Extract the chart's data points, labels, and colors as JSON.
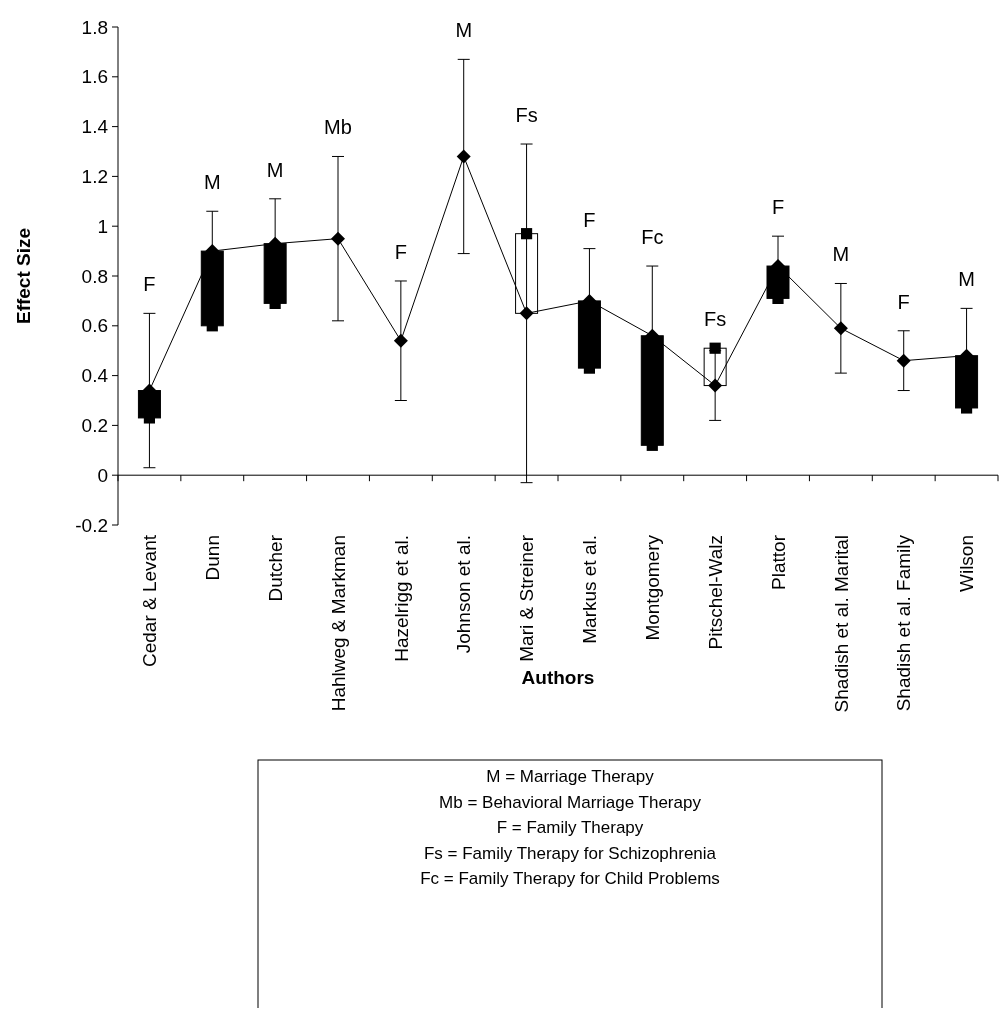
{
  "chart_data": {
    "type": "line",
    "xlabel": "Authors",
    "ylabel": "Effect Size",
    "categories": [
      "Cedar & Levant",
      "Dunn",
      "Dutcher",
      "Hahlweg & Markman",
      "Hazelrigg et al.",
      "Johnson et al.",
      "Mari & Streiner",
      "Markus et al.",
      "Montgomery",
      "Pitschel-Walz",
      "Plattor",
      "Shadish et al. Marital",
      "Shadish et al. Family",
      "Wilson"
    ],
    "ylim": [
      -0.2,
      1.8
    ],
    "yticks": [
      -0.2,
      0,
      0.2,
      0.4,
      0.6,
      0.8,
      1,
      1.2,
      1.4,
      1.6,
      1.8
    ],
    "series": [
      {
        "type": "bar",
        "colors": [
          "#000000",
          "#000000",
          "#000000",
          null,
          null,
          null,
          "#ffffff",
          "#000000",
          "#000000",
          "#ffffff",
          "#000000",
          null,
          null,
          "#000000"
        ],
        "base": [
          0.23,
          0.6,
          0.69,
          null,
          null,
          null,
          0.65,
          0.43,
          0.12,
          0.36,
          0.71,
          null,
          null,
          0.27
        ],
        "values": [
          0.11,
          0.3,
          0.24,
          null,
          null,
          null,
          0.32,
          0.27,
          0.44,
          0.15,
          0.13,
          null,
          null,
          0.21
        ]
      },
      {
        "color": "#000000",
        "marker": "diamond",
        "values": [
          0.34,
          0.9,
          0.93,
          0.95,
          0.54,
          1.28,
          0.65,
          0.7,
          0.56,
          0.36,
          0.84,
          0.59,
          0.46,
          0.48
        ],
        "errors": [
          0.31,
          0.16,
          0.18,
          0.33,
          0.24,
          0.39,
          0.68,
          0.21,
          0.28,
          0.14,
          0.12,
          0.18,
          0.12,
          0.19
        ]
      },
      {
        "type": "scatter",
        "color": "#000000",
        "marker": "square",
        "values": [
          0.23,
          0.6,
          0.69,
          null,
          null,
          null,
          0.97,
          0.43,
          0.12,
          0.51,
          0.71,
          null,
          null,
          0.27
        ]
      }
    ],
    "annotations": [
      {
        "text": "F",
        "x": "Cedar & Levant",
        "y": 0.65
      },
      {
        "text": "M",
        "x": "Dunn",
        "y": 1.06
      },
      {
        "text": "M",
        "x": "Dutcher",
        "y": 1.11
      },
      {
        "text": "Mb",
        "x": "Hahlweg & Markman",
        "y": 1.28
      },
      {
        "text": "F",
        "x": "Hazelrigg et al.",
        "y": 0.78
      },
      {
        "text": "M",
        "x": "Johnson et al.",
        "y": 1.67
      },
      {
        "text": "Fs",
        "x": "Mari & Streiner",
        "y": 1.33
      },
      {
        "text": "F",
        "x": "Markus et al.",
        "y": 0.91
      },
      {
        "text": "Fc",
        "x": "Montgomery",
        "y": 0.84
      },
      {
        "text": "Fs",
        "x": "Pitschel-Walz",
        "y": 0.51
      },
      {
        "text": "F",
        "x": "Plattor",
        "y": 0.96
      },
      {
        "text": "M",
        "x": "Shadish et al. Marital",
        "y": 0.77
      },
      {
        "text": "F",
        "x": "Shadish et al. Family",
        "y": 0.58
      },
      {
        "text": "M",
        "x": "Wilson",
        "y": 0.67
      },
      "M = Marriage Therapy",
      "Mb = Behavioral Marriage Therapy",
      "F = Family Therapy",
      "Fs = Family Therapy for Schizophrenia",
      "Fc = Family Therapy for Child Problems"
    ]
  }
}
